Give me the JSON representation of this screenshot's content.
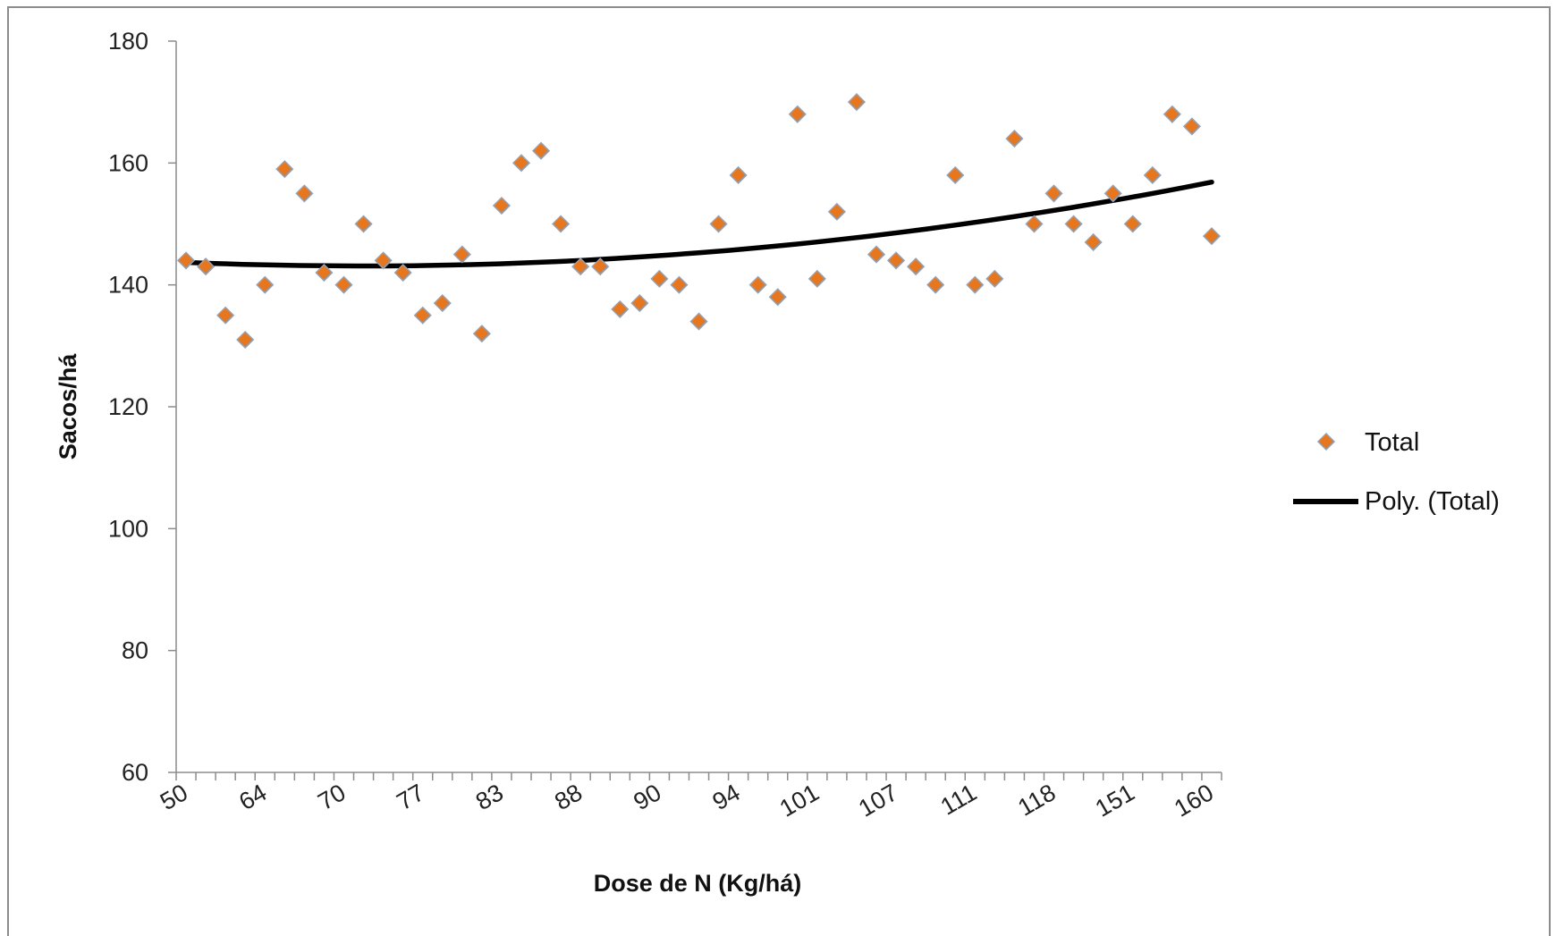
{
  "chart_data": {
    "type": "scatter",
    "title": "",
    "xlabel": "Dose de N (Kg/há)",
    "ylabel": "Sacos/há",
    "ylim": [
      60,
      180
    ],
    "yticks": [
      60,
      80,
      100,
      120,
      140,
      160,
      180
    ],
    "x_tick_labels": [
      "50",
      "64",
      "70",
      "77",
      "83",
      "88",
      "90",
      "94",
      "101",
      "107",
      "111",
      "118",
      "151",
      "160"
    ],
    "x_label_every": 4,
    "grid": false,
    "legend_position": "right",
    "series": [
      {
        "name": "Total",
        "kind": "scatter",
        "marker": "diamond",
        "color": "#E8761C",
        "values": [
          144,
          143,
          135,
          131,
          140,
          159,
          155,
          142,
          140,
          150,
          144,
          142,
          135,
          137,
          145,
          132,
          153,
          160,
          162,
          150,
          143,
          143,
          136,
          137,
          141,
          140,
          134,
          150,
          158,
          140,
          138,
          168,
          141,
          152,
          170,
          145,
          144,
          143,
          140,
          158,
          140,
          141,
          164,
          150,
          155,
          150,
          147,
          155,
          150,
          158,
          168,
          166,
          148
        ]
      },
      {
        "name": "Poly. (Total)",
        "kind": "trendline",
        "color": "#000000",
        "values": [
          143.69,
          143.52,
          143.37,
          143.26,
          143.18,
          143.13,
          143.1,
          143.11,
          143.15,
          143.23,
          143.33,
          143.46,
          143.63,
          143.82,
          144.05,
          144.31,
          144.6,
          144.92,
          145.27,
          145.65,
          146.06,
          146.5,
          146.97,
          147.48,
          148.01,
          148.58,
          149.18,
          149.81,
          150.47,
          151.16,
          151.88,
          152.63,
          153.42,
          154.23,
          155.08,
          155.96,
          156.87
        ]
      }
    ]
  }
}
